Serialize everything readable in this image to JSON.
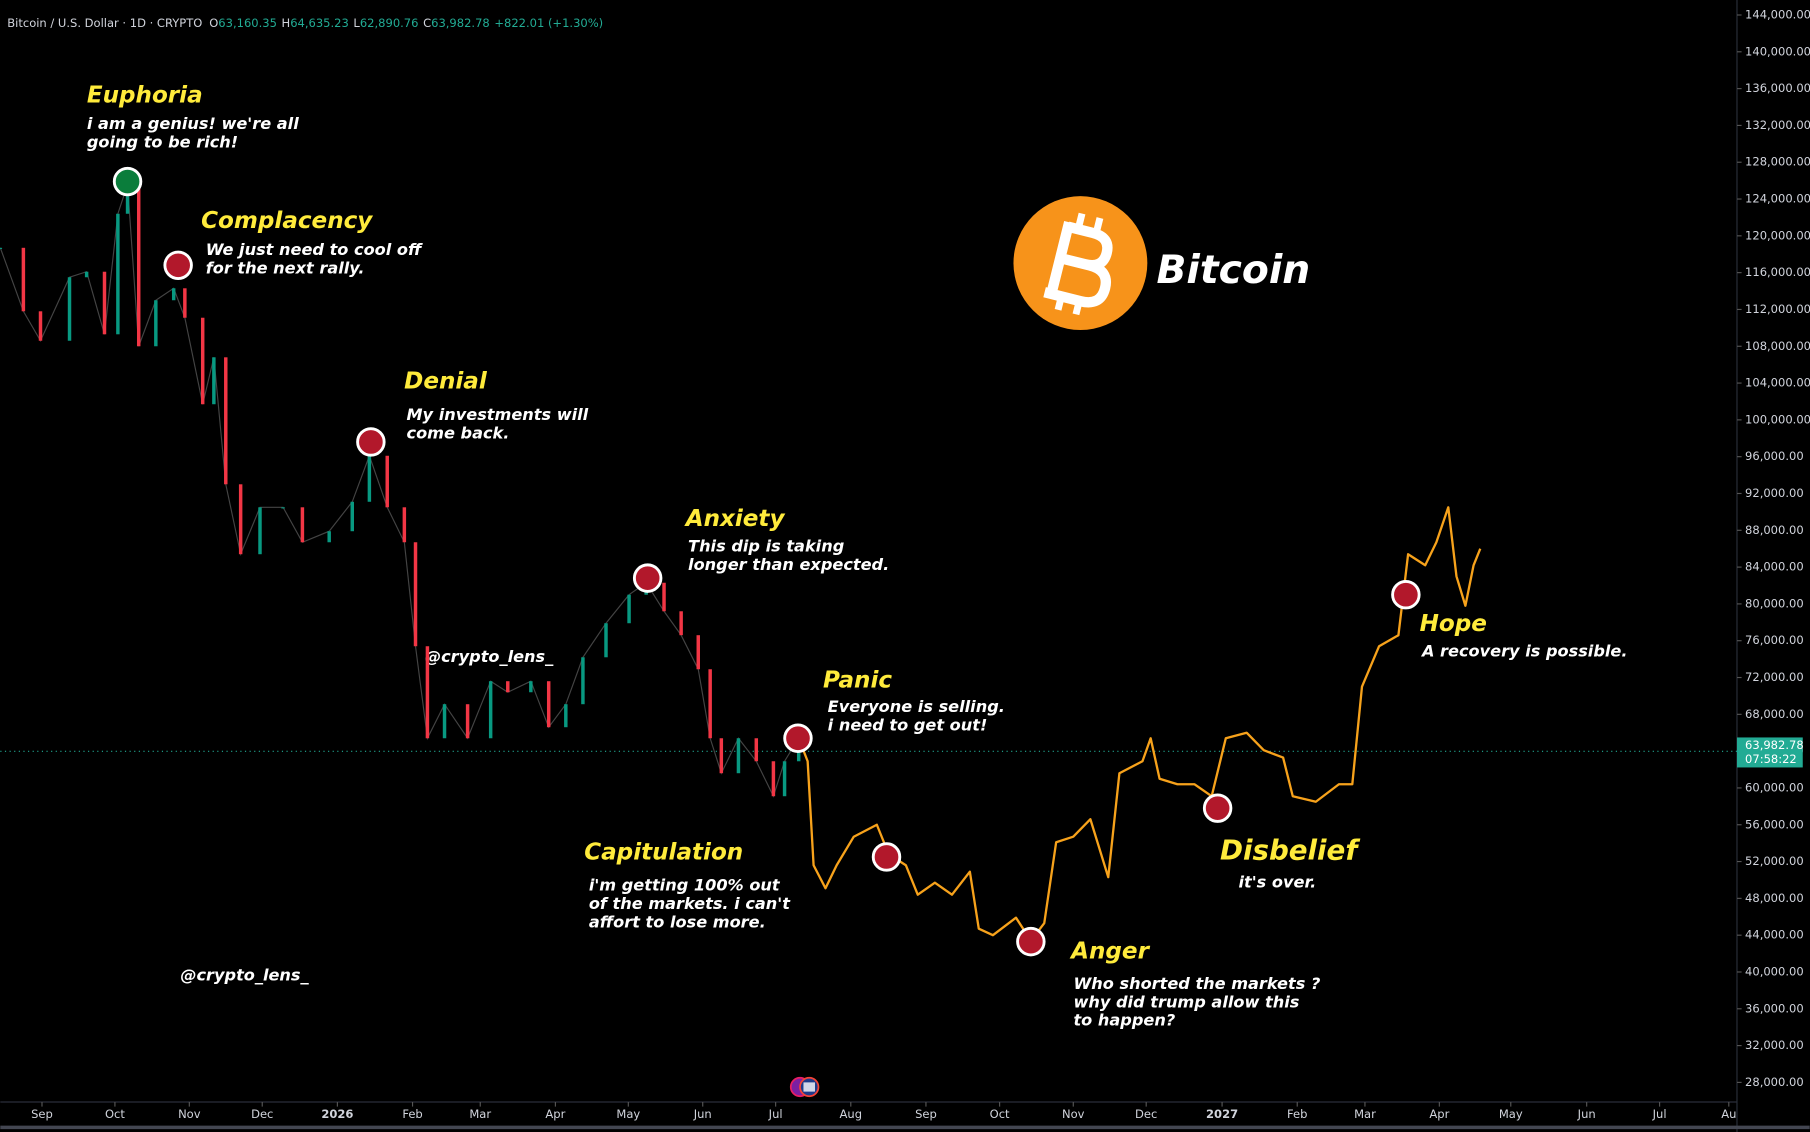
{
  "header": {
    "symbol": "Bitcoin / U.S. Dollar · 1D · CRYPTO",
    "ohlc": [
      {
        "key": "O",
        "value": "63,160.35"
      },
      {
        "key": "H",
        "value": "64,635.23"
      },
      {
        "key": "L",
        "value": "62,890.76"
      },
      {
        "key": "C",
        "value": "63,982.78"
      }
    ],
    "change": "+822.01 (+1.30%)"
  },
  "logo_text": "Bitcoin",
  "watermarks": [
    "@crypto_lens_",
    "@crypto_lens_"
  ],
  "chart_data": {
    "type": "line",
    "xlim": [
      -0.56,
      22.78
    ],
    "ylim": [
      25870,
      145630
    ],
    "xticks": [
      {
        "value": 0,
        "label": "Sep"
      },
      {
        "value": 0.98,
        "label": "Oct"
      },
      {
        "value": 1.98,
        "label": "Nov"
      },
      {
        "value": 2.96,
        "label": "Dec"
      },
      {
        "value": 3.97,
        "label": "2026"
      },
      {
        "value": 4.98,
        "label": "Feb"
      },
      {
        "value": 5.89,
        "label": "Mar"
      },
      {
        "value": 6.9,
        "label": "Apr"
      },
      {
        "value": 7.88,
        "label": "May"
      },
      {
        "value": 8.88,
        "label": "Jun"
      },
      {
        "value": 9.86,
        "label": "Jul"
      },
      {
        "value": 10.87,
        "label": "Aug"
      },
      {
        "value": 11.88,
        "label": "Sep"
      },
      {
        "value": 12.87,
        "label": "Oct"
      },
      {
        "value": 13.86,
        "label": "Nov"
      },
      {
        "value": 14.84,
        "label": "Dec"
      },
      {
        "value": 15.86,
        "label": "2027"
      },
      {
        "value": 16.87,
        "label": "Feb"
      },
      {
        "value": 17.78,
        "label": "Mar"
      },
      {
        "value": 18.78,
        "label": "Apr"
      },
      {
        "value": 19.74,
        "label": "May"
      },
      {
        "value": 20.76,
        "label": "Jun"
      },
      {
        "value": 21.74,
        "label": "Jul"
      },
      {
        "value": 22.67,
        "label": "Au"
      }
    ],
    "yticks": [
      {
        "value": 28000,
        "label": "28,000.00"
      },
      {
        "value": 32000,
        "label": "32,000.00"
      },
      {
        "value": 36000,
        "label": "36,000.00"
      },
      {
        "value": 40000,
        "label": "40,000.00"
      },
      {
        "value": 44000,
        "label": "44,000.00"
      },
      {
        "value": 48000,
        "label": "48,000.00"
      },
      {
        "value": 52000,
        "label": "52,000.00"
      },
      {
        "value": 56000,
        "label": "56,000.00"
      },
      {
        "value": 60000,
        "label": "60,000.00"
      },
      {
        "value": 64000,
        "label": "64,000.00"
      },
      {
        "value": 68000,
        "label": "68,000.00"
      },
      {
        "value": 72000,
        "label": "72,000.00"
      },
      {
        "value": 76000,
        "label": "76,000.00"
      },
      {
        "value": 80000,
        "label": "80,000.00"
      },
      {
        "value": 84000,
        "label": "84,000.00"
      },
      {
        "value": 88000,
        "label": "88,000.00"
      },
      {
        "value": 92000,
        "label": "92,000.00"
      },
      {
        "value": 96000,
        "label": "96,000.00"
      },
      {
        "value": 100000,
        "label": "100,000.00"
      },
      {
        "value": 104000,
        "label": "104,000.00"
      },
      {
        "value": 108000,
        "label": "108,000.00"
      },
      {
        "value": 112000,
        "label": "112,000.00"
      },
      {
        "value": 116000,
        "label": "116,000.00"
      },
      {
        "value": 120000,
        "label": "120,000.00"
      },
      {
        "value": 124000,
        "label": "124,000.00"
      },
      {
        "value": 128000,
        "label": "128,000.00"
      },
      {
        "value": 132000,
        "label": "132,000.00"
      },
      {
        "value": 136000,
        "label": "136,000.00"
      },
      {
        "value": 140000,
        "label": "140,000.00"
      },
      {
        "value": 144000,
        "label": "144,000.00"
      }
    ],
    "last_price": {
      "value": 63982.78,
      "label": "63,982.78",
      "countdown": "07:58:22",
      "color": "#22ab94"
    },
    "series": [
      {
        "style": "candles",
        "up_color": "#089981",
        "down_color": "#f23645",
        "x": [
          -0.56,
          -0.25,
          -0.02,
          0.37,
          0.6,
          0.84,
          1.02,
          1.15,
          1.3,
          1.53,
          1.77,
          1.92,
          2.16,
          2.31,
          2.47,
          2.67,
          2.93,
          3.24,
          3.5,
          3.86,
          4.17,
          4.4,
          4.64,
          4.87,
          5.02,
          5.18,
          5.41,
          5.72,
          6.03,
          6.26,
          6.57,
          6.81,
          7.04,
          7.27,
          7.58,
          7.89,
          8.12,
          8.36,
          8.59,
          8.82,
          8.98,
          9.13,
          9.36,
          9.6,
          9.83,
          9.98,
          10.17
        ],
        "values": [
          118700,
          111800,
          108600,
          115500,
          116100,
          109300,
          122400,
          125600,
          108000,
          113000,
          114300,
          111100,
          101700,
          106800,
          93000,
          85400,
          90500,
          90500,
          86700,
          87900,
          91100,
          96100,
          90500,
          86700,
          75400,
          65400,
          69100,
          65400,
          71600,
          70400,
          71600,
          66600,
          69100,
          74200,
          77900,
          81000,
          82300,
          79200,
          76600,
          72900,
          65400,
          61600,
          65400,
          62900,
          59100,
          62900,
          65400
        ]
      },
      {
        "style": "line",
        "color": "#f7a21b",
        "x": [
          10.17,
          10.29,
          10.37,
          10.53,
          10.68,
          10.91,
          11.22,
          11.38,
          11.61,
          11.77,
          12.0,
          12.23,
          12.47,
          12.59,
          12.78,
          13.09,
          13.29,
          13.47,
          13.63,
          13.86,
          14.09,
          14.33,
          14.48,
          14.79,
          14.9,
          15.02,
          15.26,
          15.49,
          15.72,
          15.91,
          16.19,
          16.42,
          16.68,
          16.81,
          17.12,
          17.43,
          17.61,
          17.74,
          17.97,
          18.23,
          18.36,
          18.59,
          18.74,
          18.9,
          19.01,
          19.13,
          19.24,
          19.33
        ],
        "values": [
          65400,
          62900,
          51600,
          49100,
          51600,
          54700,
          56000,
          52800,
          51600,
          48400,
          49700,
          48400,
          50900,
          44700,
          44000,
          45900,
          43400,
          45300,
          54100,
          54700,
          56600,
          50300,
          61600,
          62900,
          65400,
          61000,
          60400,
          60400,
          59100,
          65400,
          66000,
          64100,
          63300,
          59100,
          58500,
          60400,
          60400,
          71000,
          75400,
          76600,
          85400,
          84200,
          86700,
          90500,
          83000,
          79800,
          84200,
          86000
        ]
      }
    ],
    "annotations": [
      {
        "title": "Euphoria",
        "lines": [
          "i am a genius! we're all",
          "going to be rich!"
        ],
        "x": 1.15,
        "value": 125900,
        "color": "#0a7d3b"
      },
      {
        "title": "Complacency",
        "lines": [
          "We just need to cool off",
          "for the next rally."
        ],
        "x": 1.83,
        "value": 116800,
        "color": "#b2182b"
      },
      {
        "title": "Denial",
        "lines": [
          "My investments will",
          "come back."
        ],
        "x": 4.42,
        "value": 97600,
        "color": "#b2182b"
      },
      {
        "title": "Anxiety",
        "lines": [
          "This dip is taking",
          "longer than expected."
        ],
        "x": 8.14,
        "value": 82800,
        "color": "#b2182b"
      },
      {
        "title": "Panic",
        "lines": [
          "Everyone is selling.",
          "i need to get out!"
        ],
        "x": 10.16,
        "value": 65400,
        "color": "#b2182b"
      },
      {
        "title": "Capitulation",
        "lines": [
          "i'm getting 100% out",
          "of the markets. i can't",
          "affort to lose more."
        ],
        "x": 11.35,
        "value": 52500,
        "color": "#b2182b"
      },
      {
        "title": "Anger",
        "lines": [
          "Who shorted the markets ?",
          "why did trump allow this",
          "to happen?"
        ],
        "x": 13.29,
        "value": 43300,
        "color": "#b2182b"
      },
      {
        "title": "Disbelief",
        "lines": [
          "it's over."
        ],
        "x": 15.8,
        "value": 57800,
        "color": "#b2182b"
      },
      {
        "title": "Hope",
        "lines": [
          "A recovery is possible."
        ],
        "x": 18.33,
        "value": 81000,
        "color": "#b2182b"
      }
    ]
  }
}
